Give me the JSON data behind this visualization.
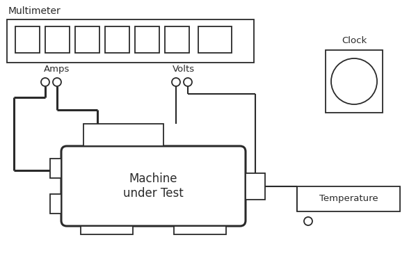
{
  "bg_color": "#ffffff",
  "line_color": "#2a2a2a",
  "multimeter_label": "Multimeter",
  "amps_label": "Amps",
  "volts_label": "Volts",
  "clock_label": "Clock",
  "temp_label": "Temperature",
  "machine_label": "Machine\nunder Test",
  "lw": 1.3,
  "lw_thick": 2.2,
  "lw_wire": 1.5
}
